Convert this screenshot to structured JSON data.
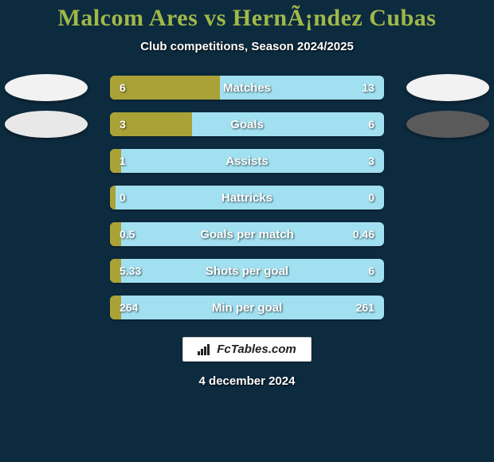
{
  "background_color": "#0d2b3f",
  "title": {
    "text": "Malcom Ares vs HernÃ¡ndez Cubas",
    "color": "#a0b947",
    "fontsize": 30
  },
  "subtitle": {
    "text": "Club competitions, Season 2024/2025",
    "fontsize": 15
  },
  "bar_base_color": "#a1e0f0",
  "bar_fill_color": "#aaa236",
  "bar_label_fontsize": 15,
  "value_fontsize": 14,
  "oval_colors": {
    "row0_left": "#f2f2f2",
    "row0_right": "#f2f2f2",
    "row1_left": "#e8e8e8",
    "row1_right": "#5a5a5a"
  },
  "rows": [
    {
      "label": "Matches",
      "left": "6",
      "right": "13",
      "fill_pct": 40
    },
    {
      "label": "Goals",
      "left": "3",
      "right": "6",
      "fill_pct": 30
    },
    {
      "label": "Assists",
      "left": "1",
      "right": "3",
      "fill_pct": 4
    },
    {
      "label": "Hattricks",
      "left": "0",
      "right": "0",
      "fill_pct": 2
    },
    {
      "label": "Goals per match",
      "left": "0.5",
      "right": "0.46",
      "fill_pct": 4
    },
    {
      "label": "Shots per goal",
      "left": "5.33",
      "right": "6",
      "fill_pct": 4
    },
    {
      "label": "Min per goal",
      "left": "264",
      "right": "261",
      "fill_pct": 4
    }
  ],
  "logo": {
    "text": "FcTables.com",
    "fontsize": 15
  },
  "date": {
    "text": "4 december 2024",
    "fontsize": 15
  }
}
